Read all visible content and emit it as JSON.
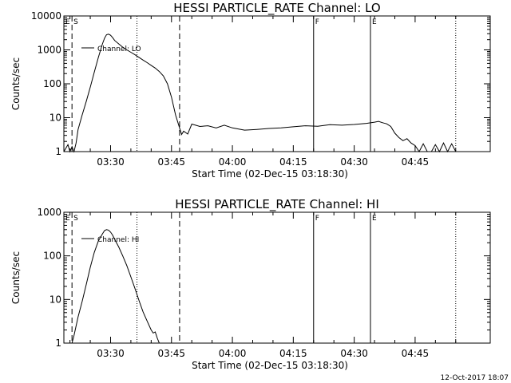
{
  "footer_date": "12-Oct-2017 18:07",
  "chart_data": [
    {
      "type": "line",
      "title": "HESSI PARTICLE_RATE Channel: LO",
      "xlabel": "Start Time (02-Dec-15 03:18:30)",
      "ylabel": "Counts/sec",
      "yscale": "log",
      "xlim": [
        "03:18:30",
        "05:03:30"
      ],
      "ylim": [
        1,
        10000
      ],
      "x_ticks": [
        "03:30",
        "03:45",
        "04:00",
        "04:15",
        "04:30",
        "04:45"
      ],
      "y_ticks": [
        "1",
        "10",
        "100",
        "1000",
        "10000"
      ],
      "legend": "top-left",
      "grid": false,
      "series": [
        {
          "name": "Channel: LO",
          "x": [
            "03:18:30",
            "03:19:30",
            "03:20:00",
            "03:20:30",
            "03:21:00",
            "03:21:30",
            "03:22:00",
            "03:23:00",
            "03:24:00",
            "03:25:00",
            "03:26:00",
            "03:27:00",
            "03:28:00",
            "03:28:30",
            "03:29:00",
            "03:29:30",
            "03:30:00",
            "03:30:30",
            "03:31:00",
            "03:32:00",
            "03:33:00",
            "03:34:00",
            "03:35:00",
            "03:36:00",
            "03:37:00",
            "03:38:00",
            "03:39:00",
            "03:40:00",
            "03:41:00",
            "03:42:00",
            "03:43:00",
            "03:44:00",
            "03:45:00",
            "03:46:00",
            "03:47:00",
            "03:47:30",
            "03:48:00",
            "03:49:00",
            "03:50:00",
            "03:52:00",
            "03:54:00",
            "03:56:00",
            "03:58:00",
            "04:00:00",
            "04:03:00",
            "04:06:00",
            "04:09:00",
            "04:12:00",
            "04:15:00",
            "04:18:00",
            "04:21:00",
            "04:24:00",
            "04:27:00",
            "04:30:00",
            "04:33:00",
            "04:35:00",
            "04:36:00",
            "04:37:00",
            "04:38:00",
            "04:39:00",
            "04:40:00",
            "04:41:00",
            "04:42:00",
            "04:43:00",
            "04:44:00",
            "04:45:00",
            "04:46:00",
            "04:47:00",
            "04:48:00",
            "04:49:00",
            "04:50:00",
            "04:51:00",
            "04:52:00",
            "04:53:00",
            "04:54:00",
            "04:55:00"
          ],
          "y": [
            1,
            1.6,
            1,
            1.4,
            1,
            1.8,
            4.5,
            12,
            30,
            80,
            220,
            600,
            1500,
            2200,
            2800,
            2900,
            2700,
            2300,
            1900,
            1500,
            1200,
            1000,
            850,
            720,
            600,
            500,
            420,
            350,
            290,
            230,
            170,
            100,
            40,
            12,
            5,
            3.2,
            4,
            3.3,
            6.5,
            5.5,
            5.8,
            5,
            6,
            5,
            4.3,
            4.5,
            4.8,
            5,
            5.4,
            5.8,
            5.6,
            6.2,
            6,
            6.3,
            6.8,
            7.4,
            7.8,
            7.1,
            6.6,
            5.5,
            3.5,
            2.6,
            2.1,
            2.4,
            1.8,
            1.5,
            1,
            1.7,
            1,
            1,
            1.6,
            1,
            1.8,
            1,
            1.7,
            1
          ]
        }
      ]
    },
    {
      "type": "line",
      "title": "HESSI PARTICLE_RATE Channel: HI",
      "xlabel": "Start Time (02-Dec-15 03:18:30)",
      "ylabel": "Counts/sec",
      "yscale": "log",
      "xlim": [
        "03:18:30",
        "05:03:30"
      ],
      "ylim": [
        1,
        1000
      ],
      "x_ticks": [
        "03:30",
        "03:45",
        "04:00",
        "04:15",
        "04:30",
        "04:45"
      ],
      "y_ticks": [
        "1",
        "10",
        "100",
        "1000"
      ],
      "legend": "top-left",
      "grid": false,
      "series": [
        {
          "name": "Channel: HI",
          "x": [
            "03:20:30",
            "03:21:00",
            "03:22:00",
            "03:23:00",
            "03:24:00",
            "03:25:00",
            "03:26:00",
            "03:27:00",
            "03:28:00",
            "03:28:30",
            "03:29:00",
            "03:29:30",
            "03:30:00",
            "03:30:30",
            "03:31:00",
            "03:32:00",
            "03:33:00",
            "03:34:00",
            "03:35:00",
            "03:36:00",
            "03:37:00",
            "03:38:00",
            "03:39:00",
            "03:40:00",
            "03:40:30",
            "03:41:00",
            "03:41:30",
            "03:42:00"
          ],
          "y": [
            1,
            1.5,
            4,
            9,
            22,
            55,
            120,
            220,
            320,
            380,
            400,
            390,
            350,
            300,
            240,
            160,
            100,
            60,
            33,
            18,
            9.5,
            5.2,
            3.2,
            2,
            1.7,
            1.8,
            1.3,
            1
          ]
        }
      ]
    }
  ]
}
